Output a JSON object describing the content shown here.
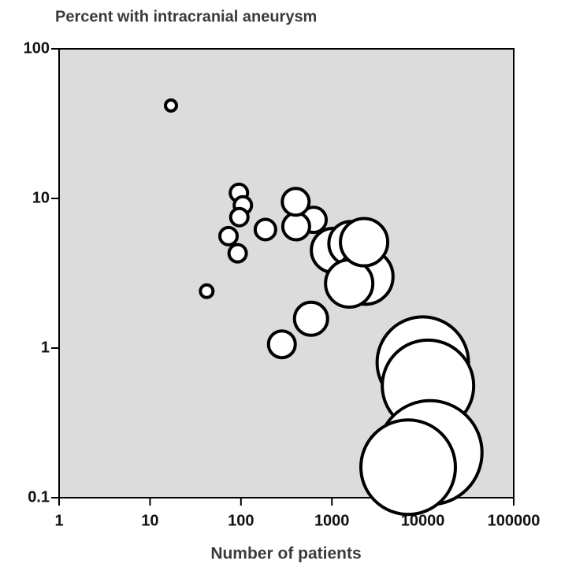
{
  "chart_data": {
    "type": "scatter",
    "title": "Percent with intracranial aneurysm",
    "x_label": "Number of patients",
    "x": [
      17,
      42,
      95,
      105,
      96,
      73,
      92,
      186,
      630,
      405,
      400,
      282,
      590,
      1040,
      1620,
      2340,
      1550,
      2260,
      10000,
      11400,
      12000,
      6900
    ],
    "values": [
      41.8,
      2.4,
      10.9,
      9.0,
      7.5,
      5.6,
      4.3,
      6.2,
      7.2,
      6.5,
      9.5,
      1.06,
      1.57,
      4.5,
      5.0,
      3.0,
      2.7,
      5.1,
      0.8,
      0.56,
      0.2,
      0.16
    ],
    "sizes": [
      7,
      8,
      11,
      11,
      11,
      11,
      11,
      13,
      16,
      17,
      17,
      17,
      21,
      28,
      28,
      35,
      30,
      30,
      58,
      58,
      66,
      60
    ],
    "color": "#ffffff",
    "xlim": [
      1,
      100000
    ],
    "ylim": [
      0.1,
      100
    ],
    "xticks": [
      1,
      10,
      100,
      1000,
      10000,
      100000
    ],
    "yticks": [
      0.1,
      1,
      10,
      100
    ],
    "log_x": true,
    "log_y": true
  }
}
